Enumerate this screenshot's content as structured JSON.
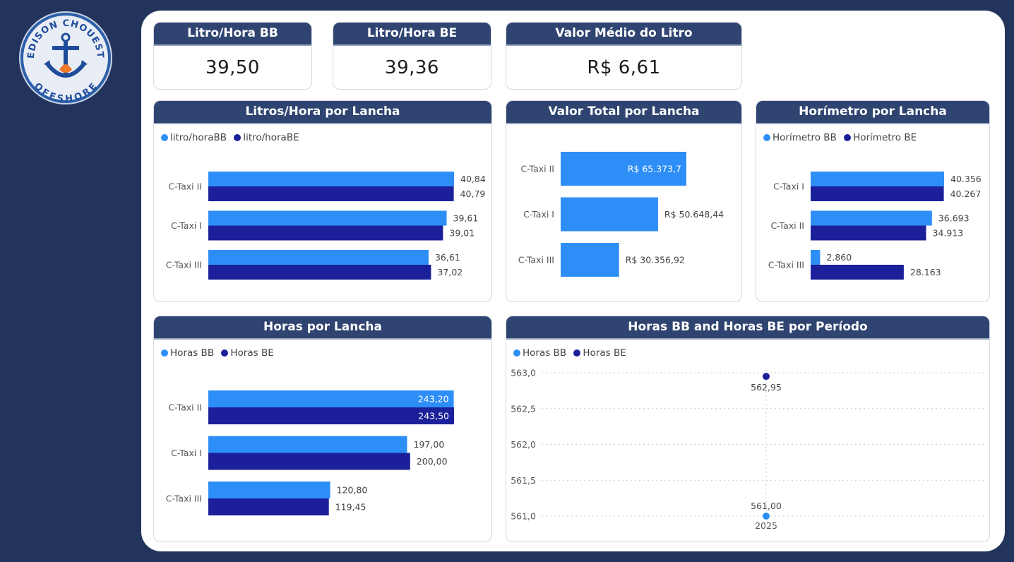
{
  "brand": {
    "logo_top_text": "EDISON CHOUEST",
    "logo_bottom_text": "OFFSHORE"
  },
  "kpis": [
    {
      "title": "Litro/Hora BB",
      "value": "39,50"
    },
    {
      "title": "Litro/Hora BE",
      "value": "39,36"
    },
    {
      "title": "Valor Médio do Litro",
      "value": "R$ 6,61"
    }
  ],
  "colors": {
    "series_light": "#2e8ef7",
    "series_dark": "#1b1f9a",
    "header_bg": "#2f4470",
    "background": "#22335c"
  },
  "panels": {
    "litros_hora": {
      "title": "Litros/Hora por Lancha"
    },
    "valor_total": {
      "title": "Valor Total por Lancha"
    },
    "horimetro": {
      "title": "Horímetro por Lancha"
    },
    "horas": {
      "title": "Horas por Lancha"
    },
    "periodo": {
      "title": "Horas BB and Horas BE por Período"
    }
  },
  "chart_data": [
    {
      "id": "litros_hora",
      "type": "bar",
      "orientation": "horizontal",
      "title": "Litros/Hora por Lancha",
      "categories": [
        "C-Taxi II",
        "C-Taxi I",
        "C-Taxi III"
      ],
      "series": [
        {
          "name": "litro/horaBB",
          "values": [
            40.84,
            39.61,
            36.61
          ],
          "labels": [
            "40,84",
            "39,61",
            "36,61"
          ]
        },
        {
          "name": "litro/horaBE",
          "values": [
            40.79,
            39.01,
            37.02
          ],
          "labels": [
            "40,79",
            "39,01",
            "37,02"
          ]
        }
      ],
      "legend": "top-left"
    },
    {
      "id": "valor_total",
      "type": "bar",
      "orientation": "horizontal",
      "title": "Valor Total por Lancha",
      "categories": [
        "C-Taxi II",
        "C-Taxi I",
        "C-Taxi III"
      ],
      "series": [
        {
          "values": [
            65373.7,
            50648.44,
            30356.92
          ],
          "labels": [
            "R$ 65.373,7",
            "R$ 50.648,44",
            "R$ 30.356,92"
          ]
        }
      ]
    },
    {
      "id": "horimetro",
      "type": "bar",
      "orientation": "horizontal",
      "title": "Horímetro por Lancha",
      "categories": [
        "C-Taxi I",
        "C-Taxi II",
        "C-Taxi III"
      ],
      "series": [
        {
          "name": "Horímetro BB",
          "values": [
            40356,
            36693,
            2860
          ],
          "labels": [
            "40.356",
            "36.693",
            "2.860"
          ]
        },
        {
          "name": "Horímetro BE",
          "values": [
            40267,
            34913,
            28163
          ],
          "labels": [
            "40.267",
            "34.913",
            "28.163"
          ]
        }
      ],
      "legend": "top-left"
    },
    {
      "id": "horas",
      "type": "bar",
      "orientation": "horizontal",
      "title": "Horas por Lancha",
      "categories": [
        "C-Taxi II",
        "C-Taxi I",
        "C-Taxi III"
      ],
      "series": [
        {
          "name": "Horas BB",
          "values": [
            243.2,
            197.0,
            120.8
          ],
          "labels": [
            "243,20",
            "197,00",
            "120,80"
          ]
        },
        {
          "name": "Horas BE",
          "values": [
            243.5,
            200.0,
            119.45
          ],
          "labels": [
            "243,50",
            "200,00",
            "119,45"
          ]
        }
      ],
      "legend": "top-left"
    },
    {
      "id": "periodo",
      "type": "scatter",
      "title": "Horas BB and Horas BE por Período",
      "x": [
        "2025"
      ],
      "series": [
        {
          "name": "Horas BB",
          "values": [
            561.0
          ],
          "labels": [
            "561,00"
          ]
        },
        {
          "name": "Horas BE",
          "values": [
            562.95
          ],
          "labels": [
            "562,95"
          ]
        }
      ],
      "ylim": [
        561.0,
        563.0
      ],
      "yticks": [
        "561,0",
        "561,5",
        "562,0",
        "562,5",
        "563,0"
      ],
      "grid": true,
      "legend": "top-left"
    }
  ]
}
